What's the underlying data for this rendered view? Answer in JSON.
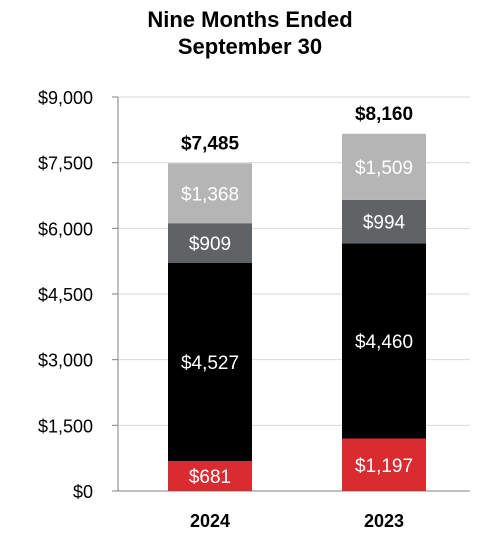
{
  "chart_data": {
    "type": "bar",
    "stacked": true,
    "title": [
      "Nine Months Ended",
      "September 30"
    ],
    "categories": [
      "2024",
      "2023"
    ],
    "ylim": [
      0,
      9000
    ],
    "y_ticks": [
      0,
      1500,
      3000,
      4500,
      6000,
      7500,
      9000
    ],
    "y_tick_labels": [
      "$0",
      "$1,500",
      "$3,000",
      "$4,500",
      "$6,000",
      "$7,500",
      "$9,000"
    ],
    "grid": true,
    "legend": "none",
    "series": [
      {
        "values": [
          681,
          1197
        ],
        "labels": [
          "$681",
          "$1,197"
        ],
        "color": "#d92b30"
      },
      {
        "values": [
          4527,
          4460
        ],
        "labels": [
          "$4,527",
          "$4,460"
        ],
        "color": "#000000"
      },
      {
        "values": [
          909,
          994
        ],
        "labels": [
          "$909",
          "$994"
        ],
        "color": "#5f6366"
      },
      {
        "values": [
          1368,
          1509
        ],
        "labels": [
          "$1,368",
          "$1,509"
        ],
        "color": "#b5b5b5"
      }
    ],
    "totals": [
      7485,
      8160
    ],
    "total_labels": [
      "$7,485",
      "$8,160"
    ]
  }
}
